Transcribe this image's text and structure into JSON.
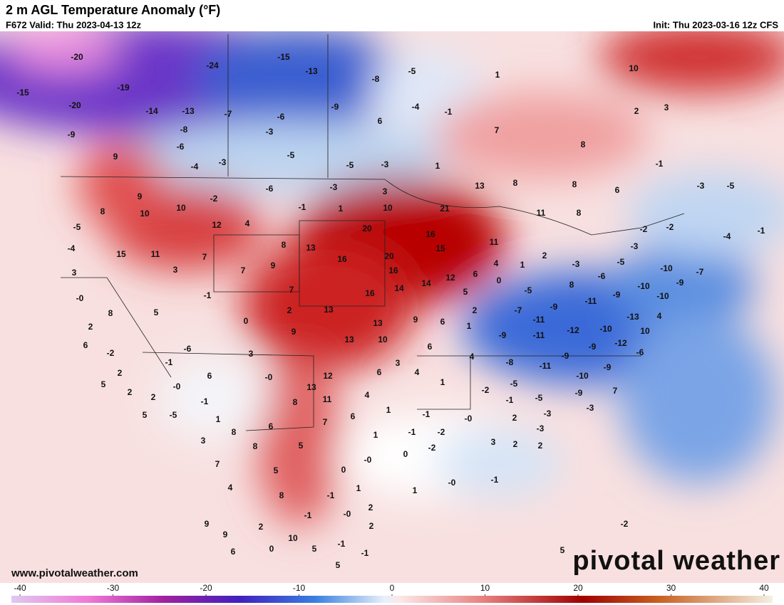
{
  "header": {
    "title": "2 m AGL Temperature Anomaly (°F)",
    "valid": "F672 Valid: Thu 2023-04-13 12z",
    "init": "Init: Thu 2023-03-16 12z CFS"
  },
  "watermark": {
    "url": "www.pivotalweather.com",
    "brand": "pivotal weather"
  },
  "colorbar": {
    "lim": [
      -40,
      40
    ],
    "ticks": [
      -40,
      -30,
      -20,
      -10,
      0,
      10,
      20,
      30,
      40
    ]
  },
  "map_labels": [
    -20,
    -15,
    -13,
    -5,
    -24,
    -15,
    -19,
    -8,
    1,
    10,
    -20,
    -14,
    -13,
    -7,
    -6,
    -9,
    -4,
    -1,
    2,
    3,
    -9,
    -8,
    -3,
    6,
    7,
    -6,
    9,
    -4,
    -3,
    -5,
    -5,
    -3,
    1,
    8,
    -1,
    -6,
    -3,
    3,
    13,
    8,
    8,
    6,
    -3,
    -5,
    9,
    -2,
    10,
    -1,
    1,
    10,
    21,
    11,
    8,
    8,
    10,
    12,
    4,
    20,
    16,
    -2,
    -2,
    -4,
    -1,
    -5,
    15,
    11,
    7,
    8,
    13,
    16,
    20,
    15,
    11,
    2,
    -3,
    -5,
    -4,
    3,
    3,
    7,
    9,
    16,
    12,
    6,
    4,
    1,
    -3,
    -6,
    -10,
    -7,
    -1,
    7,
    16,
    14,
    14,
    5,
    0,
    -5,
    8,
    -9,
    -10,
    -9,
    -10,
    "-0",
    5,
    8,
    2,
    13,
    2,
    -7,
    -9,
    -11,
    0,
    9,
    13,
    9,
    6,
    -11,
    -13,
    4,
    2,
    13,
    10,
    1,
    -9,
    -11,
    -12,
    -10,
    10,
    6,
    -2,
    -6,
    3,
    6,
    -12,
    -9,
    -6,
    -1,
    3,
    -8,
    -11,
    -9,
    2,
    6,
    "-0",
    12,
    6,
    4,
    4,
    -9,
    5,
    "-0",
    13,
    1,
    -5,
    -10,
    2,
    2,
    -1,
    11,
    8,
    4,
    -2,
    -5,
    -9,
    7,
    5,
    1,
    7,
    6,
    1,
    -1,
    "-0",
    -1,
    2,
    -3,
    -3,
    -5,
    8,
    6,
    1,
    -1,
    -2,
    -3,
    3,
    5,
    8,
    0,
    -2,
    3,
    2,
    2,
    7,
    5,
    "-0",
    0,
    4,
    1,
    "-0",
    -1,
    8,
    -1,
    1,
    9,
    -1,
    2,
    "-0",
    2,
    2,
    9,
    10,
    -1,
    6,
    0,
    5,
    -1,
    5,
    5,
    -2
  ]
}
